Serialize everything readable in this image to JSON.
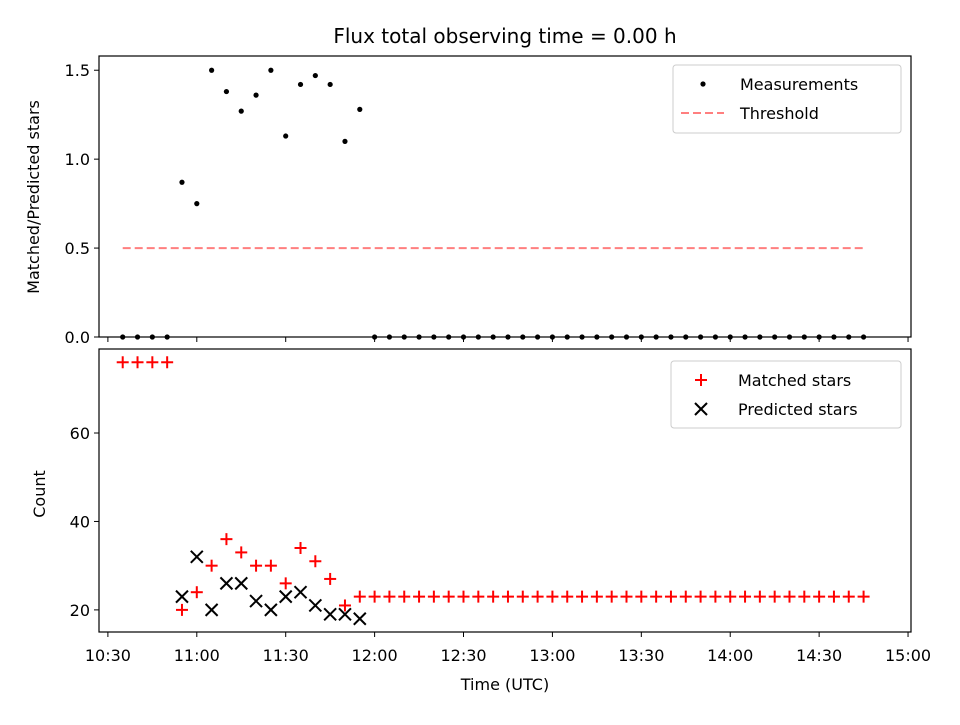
{
  "title": "Flux total observing time = 0.00 h",
  "chart_data": [
    {
      "type": "scatter",
      "ylabel": "Matched/Predicted stars",
      "ylim": [
        0,
        1.58
      ],
      "yticks": [
        {
          "value": 0.0,
          "label": "0.0"
        },
        {
          "value": 0.5,
          "label": "0.5"
        },
        {
          "value": 1.0,
          "label": "1.0"
        },
        {
          "value": 1.5,
          "label": "1.5"
        }
      ],
      "legend": {
        "placement": "top-right"
      },
      "series": [
        {
          "name": "Measurements",
          "marker": "dot",
          "color": "#000000",
          "x": [
            "10:35",
            "10:40",
            "10:45",
            "10:50",
            "10:55",
            "11:00",
            "11:05",
            "11:10",
            "11:15",
            "11:20",
            "11:25",
            "11:30",
            "11:35",
            "11:40",
            "11:45",
            "11:50",
            "11:55",
            "12:00",
            "12:05",
            "12:10",
            "12:15",
            "12:20",
            "12:25",
            "12:30",
            "12:35",
            "12:40",
            "12:45",
            "12:50",
            "12:55",
            "13:00",
            "13:05",
            "13:10",
            "13:15",
            "13:20",
            "13:25",
            "13:30",
            "13:35",
            "13:40",
            "13:45",
            "13:50",
            "13:55",
            "14:00",
            "14:05",
            "14:10",
            "14:15",
            "14:20",
            "14:25",
            "14:30",
            "14:35",
            "14:40",
            "14:45"
          ],
          "y": [
            0,
            0,
            0,
            0,
            0.87,
            0.75,
            1.5,
            1.38,
            1.27,
            1.36,
            1.5,
            1.13,
            1.42,
            1.47,
            1.42,
            1.1,
            1.28,
            0,
            0,
            0,
            0,
            0,
            0,
            0,
            0,
            0,
            0,
            0,
            0,
            0,
            0,
            0,
            0,
            0,
            0,
            0,
            0,
            0,
            0,
            0,
            0,
            0,
            0,
            0,
            0,
            0,
            0,
            0,
            0,
            0,
            0
          ]
        },
        {
          "name": "Threshold",
          "marker": "dashed-line",
          "color": "#ff7f7f",
          "x": [
            "10:35",
            "14:45"
          ],
          "y": [
            0.5,
            0.5
          ]
        }
      ]
    },
    {
      "type": "scatter",
      "ylabel": "Count",
      "xlabel": "Time (UTC)",
      "ylim": [
        15,
        79
      ],
      "yticks": [
        {
          "value": 20,
          "label": "20"
        },
        {
          "value": 40,
          "label": "40"
        },
        {
          "value": 60,
          "label": "60"
        }
      ],
      "xlim": [
        "10:27",
        "15:01"
      ],
      "xticks": [
        "10:30",
        "11:00",
        "11:30",
        "12:00",
        "12:30",
        "13:00",
        "13:30",
        "14:00",
        "14:30",
        "15:00"
      ],
      "legend": {
        "placement": "top-right"
      },
      "series": [
        {
          "name": "Matched stars",
          "marker": "plus",
          "color": "#ff0000",
          "x": [
            "10:35",
            "10:40",
            "10:45",
            "10:50",
            "10:55",
            "11:00",
            "11:05",
            "11:10",
            "11:15",
            "11:20",
            "11:25",
            "11:30",
            "11:35",
            "11:40",
            "11:45",
            "11:50",
            "11:55",
            "12:00",
            "12:05",
            "12:10",
            "12:15",
            "12:20",
            "12:25",
            "12:30",
            "12:35",
            "12:40",
            "12:45",
            "12:50",
            "12:55",
            "13:00",
            "13:05",
            "13:10",
            "13:15",
            "13:20",
            "13:25",
            "13:30",
            "13:35",
            "13:40",
            "13:45",
            "13:50",
            "13:55",
            "14:00",
            "14:05",
            "14:10",
            "14:15",
            "14:20",
            "14:25",
            "14:30",
            "14:35",
            "14:40",
            "14:45"
          ],
          "y": [
            76,
            76,
            76,
            76,
            20,
            24,
            30,
            36,
            33,
            30,
            30,
            26,
            34,
            31,
            27,
            21,
            23,
            23,
            23,
            23,
            23,
            23,
            23,
            23,
            23,
            23,
            23,
            23,
            23,
            23,
            23,
            23,
            23,
            23,
            23,
            23,
            23,
            23,
            23,
            23,
            23,
            23,
            23,
            23,
            23,
            23,
            23,
            23,
            23,
            23,
            23
          ]
        },
        {
          "name": "Predicted stars",
          "marker": "x",
          "color": "#000000",
          "x": [
            "10:55",
            "11:00",
            "11:05",
            "11:10",
            "11:15",
            "11:20",
            "11:25",
            "11:30",
            "11:35",
            "11:40",
            "11:45",
            "11:50",
            "11:55"
          ],
          "y": [
            23,
            32,
            20,
            26,
            26,
            22,
            20,
            23,
            24,
            21,
            19,
            19,
            18
          ]
        }
      ]
    }
  ]
}
